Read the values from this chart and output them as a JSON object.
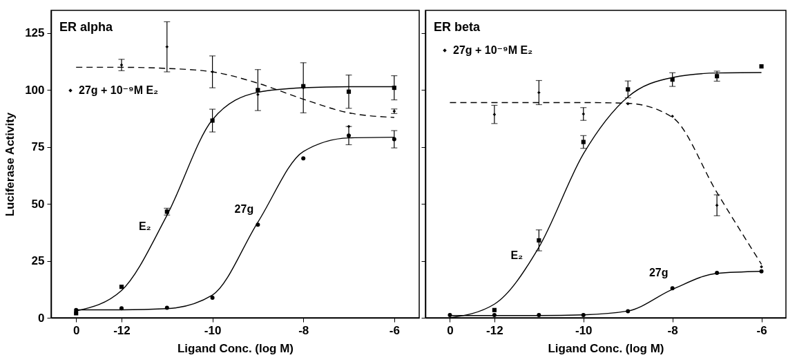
{
  "chart_data": [
    {
      "type": "scatter",
      "title": "ER alpha",
      "xlabel": "Ligand Conc. (log M)",
      "ylabel": "Luciferase Activity",
      "categories": [
        "0",
        "-12",
        null,
        "-10",
        null,
        "-8",
        null,
        "-6"
      ],
      "ylim": [
        0,
        135
      ],
      "yticks": [
        0,
        25,
        50,
        75,
        100,
        125
      ],
      "legend": "top left",
      "series": [
        {
          "type": "line",
          "line_style": "solid",
          "color": "#000000",
          "values": [
            3,
            12,
            45,
            87,
            99,
            101,
            101.5,
            101.5
          ]
        },
        {
          "type": "line",
          "line_style": "solid",
          "color": "#000000",
          "values": [
            3.5,
            3.5,
            4,
            10,
            42,
            73,
            79,
            79.3
          ]
        },
        {
          "type": "line",
          "line_style": "dashed",
          "color": "#000000",
          "values": [
            110,
            110,
            109.5,
            108,
            103,
            96,
            90,
            88
          ]
        },
        {
          "name": "E₂",
          "type": "scatter",
          "marker": "square",
          "color": "#000000",
          "values": [
            2,
            13.6,
            46.6,
            86.6,
            100,
            101.7,
            99.3,
            101
          ],
          "errors": [
            null,
            null,
            1.5,
            5,
            9,
            null,
            7.3,
            5.3
          ]
        },
        {
          "name": "27g",
          "type": "scatter",
          "marker": "circle",
          "color": "#000000",
          "values": [
            3.4,
            4.2,
            4.4,
            8.8,
            40.9,
            70,
            80,
            78.4
          ],
          "errors": [
            null,
            null,
            null,
            null,
            null,
            null,
            4,
            3.8
          ]
        },
        {
          "name": "27g + 10⁻⁹M E₂",
          "type": "scatter",
          "marker": "diamond",
          "color": "#000000",
          "values": [
            null,
            111,
            119,
            108,
            98,
            101,
            84,
            90.7
          ],
          "errors": [
            null,
            2.5,
            11,
            7,
            null,
            11,
            null,
            1
          ]
        }
      ]
    },
    {
      "type": "scatter",
      "title": "ER beta",
      "xlabel": "Ligand Conc. (log M)",
      "categories": [
        "0",
        "-12",
        null,
        "-10",
        null,
        "-8",
        null,
        "-6"
      ],
      "ylim": [
        0,
        135
      ],
      "yticks": [
        0,
        25,
        50,
        75,
        100,
        125
      ],
      "tick_labels": "x",
      "legend": "top left",
      "series": [
        {
          "type": "line",
          "line_style": "solid",
          "color": "#000000",
          "values": [
            0,
            6,
            31,
            72,
            97,
            105.5,
            107.5,
            107.7
          ]
        },
        {
          "type": "line",
          "line_style": "solid",
          "color": "#000000",
          "values": [
            1,
            1,
            1,
            1.3,
            3,
            12.5,
            19.5,
            20.4
          ]
        },
        {
          "type": "line",
          "line_style": "dashed",
          "color": "#000000",
          "values": [
            94.5,
            94.5,
            94.5,
            94.5,
            94.2,
            88,
            55,
            23.5
          ]
        },
        {
          "name": "E₂",
          "type": "scatter",
          "marker": "square",
          "color": "#000000",
          "values": [
            null,
            3.4,
            34,
            77.2,
            100.3,
            104.6,
            106.1,
            110.4
          ],
          "errors": [
            null,
            null,
            4.6,
            2.8,
            3.7,
            3,
            2.2,
            null
          ]
        },
        {
          "name": "27g",
          "type": "scatter",
          "marker": "circle",
          "color": "#000000",
          "values": [
            1.2,
            1.2,
            1.2,
            1.2,
            2.9,
            13,
            19.7,
            20.4
          ]
        },
        {
          "name": "27g + 10⁻⁹M E₂",
          "type": "scatter",
          "marker": "diamond",
          "color": "#000000",
          "values": [
            null,
            89.3,
            98.9,
            89.5,
            94,
            88.5,
            49.4,
            22.4
          ],
          "errors": [
            null,
            4,
            5.3,
            2.8,
            null,
            null,
            4.6,
            null
          ]
        }
      ]
    }
  ]
}
